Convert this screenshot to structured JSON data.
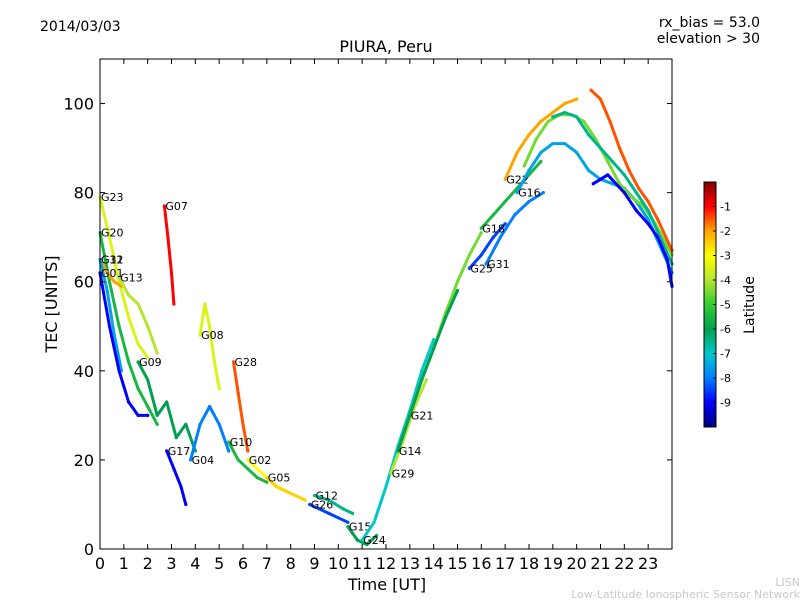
{
  "header": {
    "date": "2014/03/03",
    "rx_bias": "rx_bias = 53.0",
    "elevation": "elevation > 30"
  },
  "footer": {
    "brand": "LISN",
    "subtitle": "Low-Latitude Ionospheric Sensor Network"
  },
  "chart_data": {
    "type": "scatter",
    "title": "PIURA, Peru",
    "xlabel": "Time [UT]",
    "ylabel": "TEC [UNITS]",
    "xlim": [
      0,
      24
    ],
    "ylim": [
      0,
      110
    ],
    "xticks": [
      0,
      1,
      2,
      3,
      4,
      5,
      6,
      7,
      8,
      9,
      10,
      11,
      12,
      13,
      14,
      15,
      16,
      17,
      18,
      19,
      20,
      21,
      22,
      23
    ],
    "yticks": [
      0,
      20,
      40,
      60,
      80,
      100
    ],
    "grid": false,
    "colorbar": {
      "label": "Latitude",
      "min": -10,
      "max": 0,
      "ticks": [
        -1,
        -2,
        -3,
        -4,
        -5,
        -6,
        -7,
        -8,
        -9
      ],
      "colormap": [
        "#00007f",
        "#0000ff",
        "#007fff",
        "#00c8c8",
        "#00a050",
        "#32cd32",
        "#b4e632",
        "#ffff00",
        "#ffa500",
        "#ff0000",
        "#7f0000"
      ]
    },
    "series": [
      {
        "name": "G23",
        "lat": -3.5,
        "x": [
          0.0,
          0.4,
          0.8,
          1.2,
          1.6,
          2.0
        ],
        "y": [
          79,
          70,
          60,
          52,
          46,
          43
        ]
      },
      {
        "name": "G20",
        "lat": -5.5,
        "x": [
          0.0,
          0.4,
          0.8,
          1.2,
          1.6,
          2.0,
          2.4
        ],
        "y": [
          71,
          60,
          50,
          42,
          36,
          32,
          28
        ]
      },
      {
        "name": "G32",
        "lat": -2.0,
        "x": [
          0.0,
          0.3,
          0.6,
          0.9
        ],
        "y": [
          65,
          62,
          60,
          59
        ]
      },
      {
        "name": "G11",
        "lat": -7.5,
        "x": [
          0.0,
          0.3,
          0.6,
          0.9
        ],
        "y": [
          65,
          58,
          48,
          40
        ]
      },
      {
        "name": "G13",
        "lat": -4.0,
        "x": [
          0.8,
          1.2,
          1.6,
          2.0,
          2.4
        ],
        "y": [
          61,
          57,
          55,
          50,
          44
        ]
      },
      {
        "name": "G01",
        "lat": -9.0,
        "x": [
          0.0,
          0.4,
          0.8,
          1.2,
          1.6,
          2.0
        ],
        "y": [
          62,
          50,
          40,
          33,
          30,
          30
        ]
      },
      {
        "name": "G07",
        "lat": -1.0,
        "x": [
          2.7,
          2.85,
          3.0,
          3.1
        ],
        "y": [
          77,
          70,
          62,
          55
        ]
      },
      {
        "name": "G08",
        "lat": -3.5,
        "x": [
          4.2,
          4.4,
          4.6,
          4.8,
          5.0
        ],
        "y": [
          48,
          55,
          50,
          42,
          36
        ]
      },
      {
        "name": "G09",
        "lat": -6.0,
        "x": [
          1.6,
          2.0,
          2.4,
          2.8,
          3.2,
          3.6,
          4.0
        ],
        "y": [
          42,
          38,
          30,
          33,
          25,
          28,
          22
        ]
      },
      {
        "name": "G28",
        "lat": -1.5,
        "x": [
          5.6,
          5.8,
          6.0,
          6.2
        ],
        "y": [
          42,
          35,
          28,
          22
        ]
      },
      {
        "name": "G04",
        "lat": -8.0,
        "x": [
          3.8,
          4.2,
          4.6,
          5.0,
          5.4
        ],
        "y": [
          20,
          28,
          32,
          28,
          22
        ]
      },
      {
        "name": "G17",
        "lat": -9.0,
        "x": [
          2.8,
          3.1,
          3.4,
          3.6
        ],
        "y": [
          22,
          18,
          14,
          10
        ]
      },
      {
        "name": "G10",
        "lat": -5.5,
        "x": [
          5.4,
          5.8,
          6.2,
          6.6,
          7.0
        ],
        "y": [
          24,
          20,
          18,
          16,
          15
        ]
      },
      {
        "name": "G02",
        "lat": -3.0,
        "x": [
          6.2,
          6.6,
          7.0,
          7.4,
          7.8
        ],
        "y": [
          20,
          18,
          16,
          14,
          13
        ]
      },
      {
        "name": "G05",
        "lat": -2.5,
        "x": [
          7.0,
          7.4,
          7.8,
          8.2,
          8.6
        ],
        "y": [
          16,
          14,
          13,
          12,
          11
        ]
      },
      {
        "name": "G26",
        "lat": -8.5,
        "x": [
          8.8,
          9.2,
          9.6,
          10.0,
          10.4
        ],
        "y": [
          10,
          9,
          8,
          7,
          6
        ]
      },
      {
        "name": "G12",
        "lat": -6.5,
        "x": [
          9.0,
          9.6,
          10.2,
          10.6
        ],
        "y": [
          12,
          11,
          9,
          8
        ]
      },
      {
        "name": "G15",
        "lat": -6.0,
        "x": [
          10.4,
          10.8,
          11.2,
          11.6
        ],
        "y": [
          5,
          2,
          1,
          3
        ]
      },
      {
        "name": "G24",
        "lat": -7.0,
        "x": [
          11.0,
          11.5,
          12.0,
          12.5,
          13.0,
          13.5,
          14.0
        ],
        "y": [
          2,
          6,
          14,
          23,
          31,
          40,
          47
        ]
      },
      {
        "name": "G29",
        "lat": -4.0,
        "x": [
          12.2,
          12.7,
          13.2,
          13.7
        ],
        "y": [
          17,
          24,
          32,
          38
        ]
      },
      {
        "name": "G21",
        "lat": -4.5,
        "x": [
          13.0,
          13.5,
          14.0,
          14.5,
          15.0,
          15.5,
          16.0
        ],
        "y": [
          30,
          38,
          45,
          53,
          60,
          66,
          71
        ]
      },
      {
        "name": "G14",
        "lat": -6.0,
        "x": [
          12.5,
          13.0,
          13.5,
          14.0,
          14.5,
          15.0
        ],
        "y": [
          22,
          30,
          38,
          45,
          52,
          58
        ]
      },
      {
        "name": "G25",
        "lat": -8.5,
        "x": [
          15.5,
          16.0,
          16.5,
          17.0
        ],
        "y": [
          63,
          66,
          70,
          73
        ]
      },
      {
        "name": "G31",
        "lat": -8.0,
        "x": [
          16.2,
          16.8,
          17.4,
          18.0,
          18.6
        ],
        "y": [
          64,
          70,
          75,
          78,
          80
        ]
      },
      {
        "name": "G18",
        "lat": -5.5,
        "x": [
          16.0,
          16.5,
          17.0,
          17.5,
          18.0,
          18.5
        ],
        "y": [
          72,
          75,
          78,
          81,
          84,
          87
        ]
      },
      {
        "name": "G22",
        "lat": -2.0,
        "x": [
          17.0,
          17.5,
          18.0,
          18.5,
          19.0,
          19.5,
          20.0
        ],
        "y": [
          83,
          89,
          93,
          96,
          98,
          100,
          101
        ]
      },
      {
        "name": "G16",
        "lat": -7.5,
        "x": [
          17.5,
          18.0,
          18.5,
          19.0,
          19.5,
          20.0,
          20.5,
          21.0,
          21.5,
          22.0,
          22.5,
          23.0,
          23.5,
          24.0
        ],
        "y": [
          80,
          85,
          89,
          91,
          91,
          89,
          85,
          83,
          82,
          81,
          78,
          74,
          68,
          62
        ]
      },
      {
        "name": "",
        "lat": -4.5,
        "x": [
          17.8,
          18.3,
          18.8,
          19.3,
          19.8,
          20.3,
          20.8,
          21.3,
          21.8,
          22.3,
          22.8,
          23.3,
          24.0
        ],
        "y": [
          86,
          92,
          96,
          97.5,
          97.5,
          96,
          92,
          87,
          82,
          79,
          77,
          73,
          66
        ]
      },
      {
        "name": "",
        "lat": -6.5,
        "x": [
          19.0,
          19.5,
          20.0,
          20.5,
          21.0,
          21.5,
          22.0,
          22.5,
          23.0,
          23.5,
          24.0
        ],
        "y": [
          97,
          98,
          97,
          93,
          90,
          87,
          84,
          80,
          76,
          70,
          64
        ]
      },
      {
        "name": "",
        "lat": -1.5,
        "x": [
          20.6,
          21.0,
          21.4,
          21.8,
          22.2,
          22.6,
          23.0,
          23.4,
          24.0
        ],
        "y": [
          103,
          101,
          96,
          90,
          85,
          81,
          78,
          74,
          67
        ]
      },
      {
        "name": "",
        "lat": -9.0,
        "x": [
          20.7,
          21.0,
          21.3,
          22.0,
          22.5,
          23.0,
          23.4,
          23.8,
          24.0
        ],
        "y": [
          82,
          83,
          84,
          80,
          76,
          73,
          70,
          65,
          59
        ]
      }
    ]
  }
}
